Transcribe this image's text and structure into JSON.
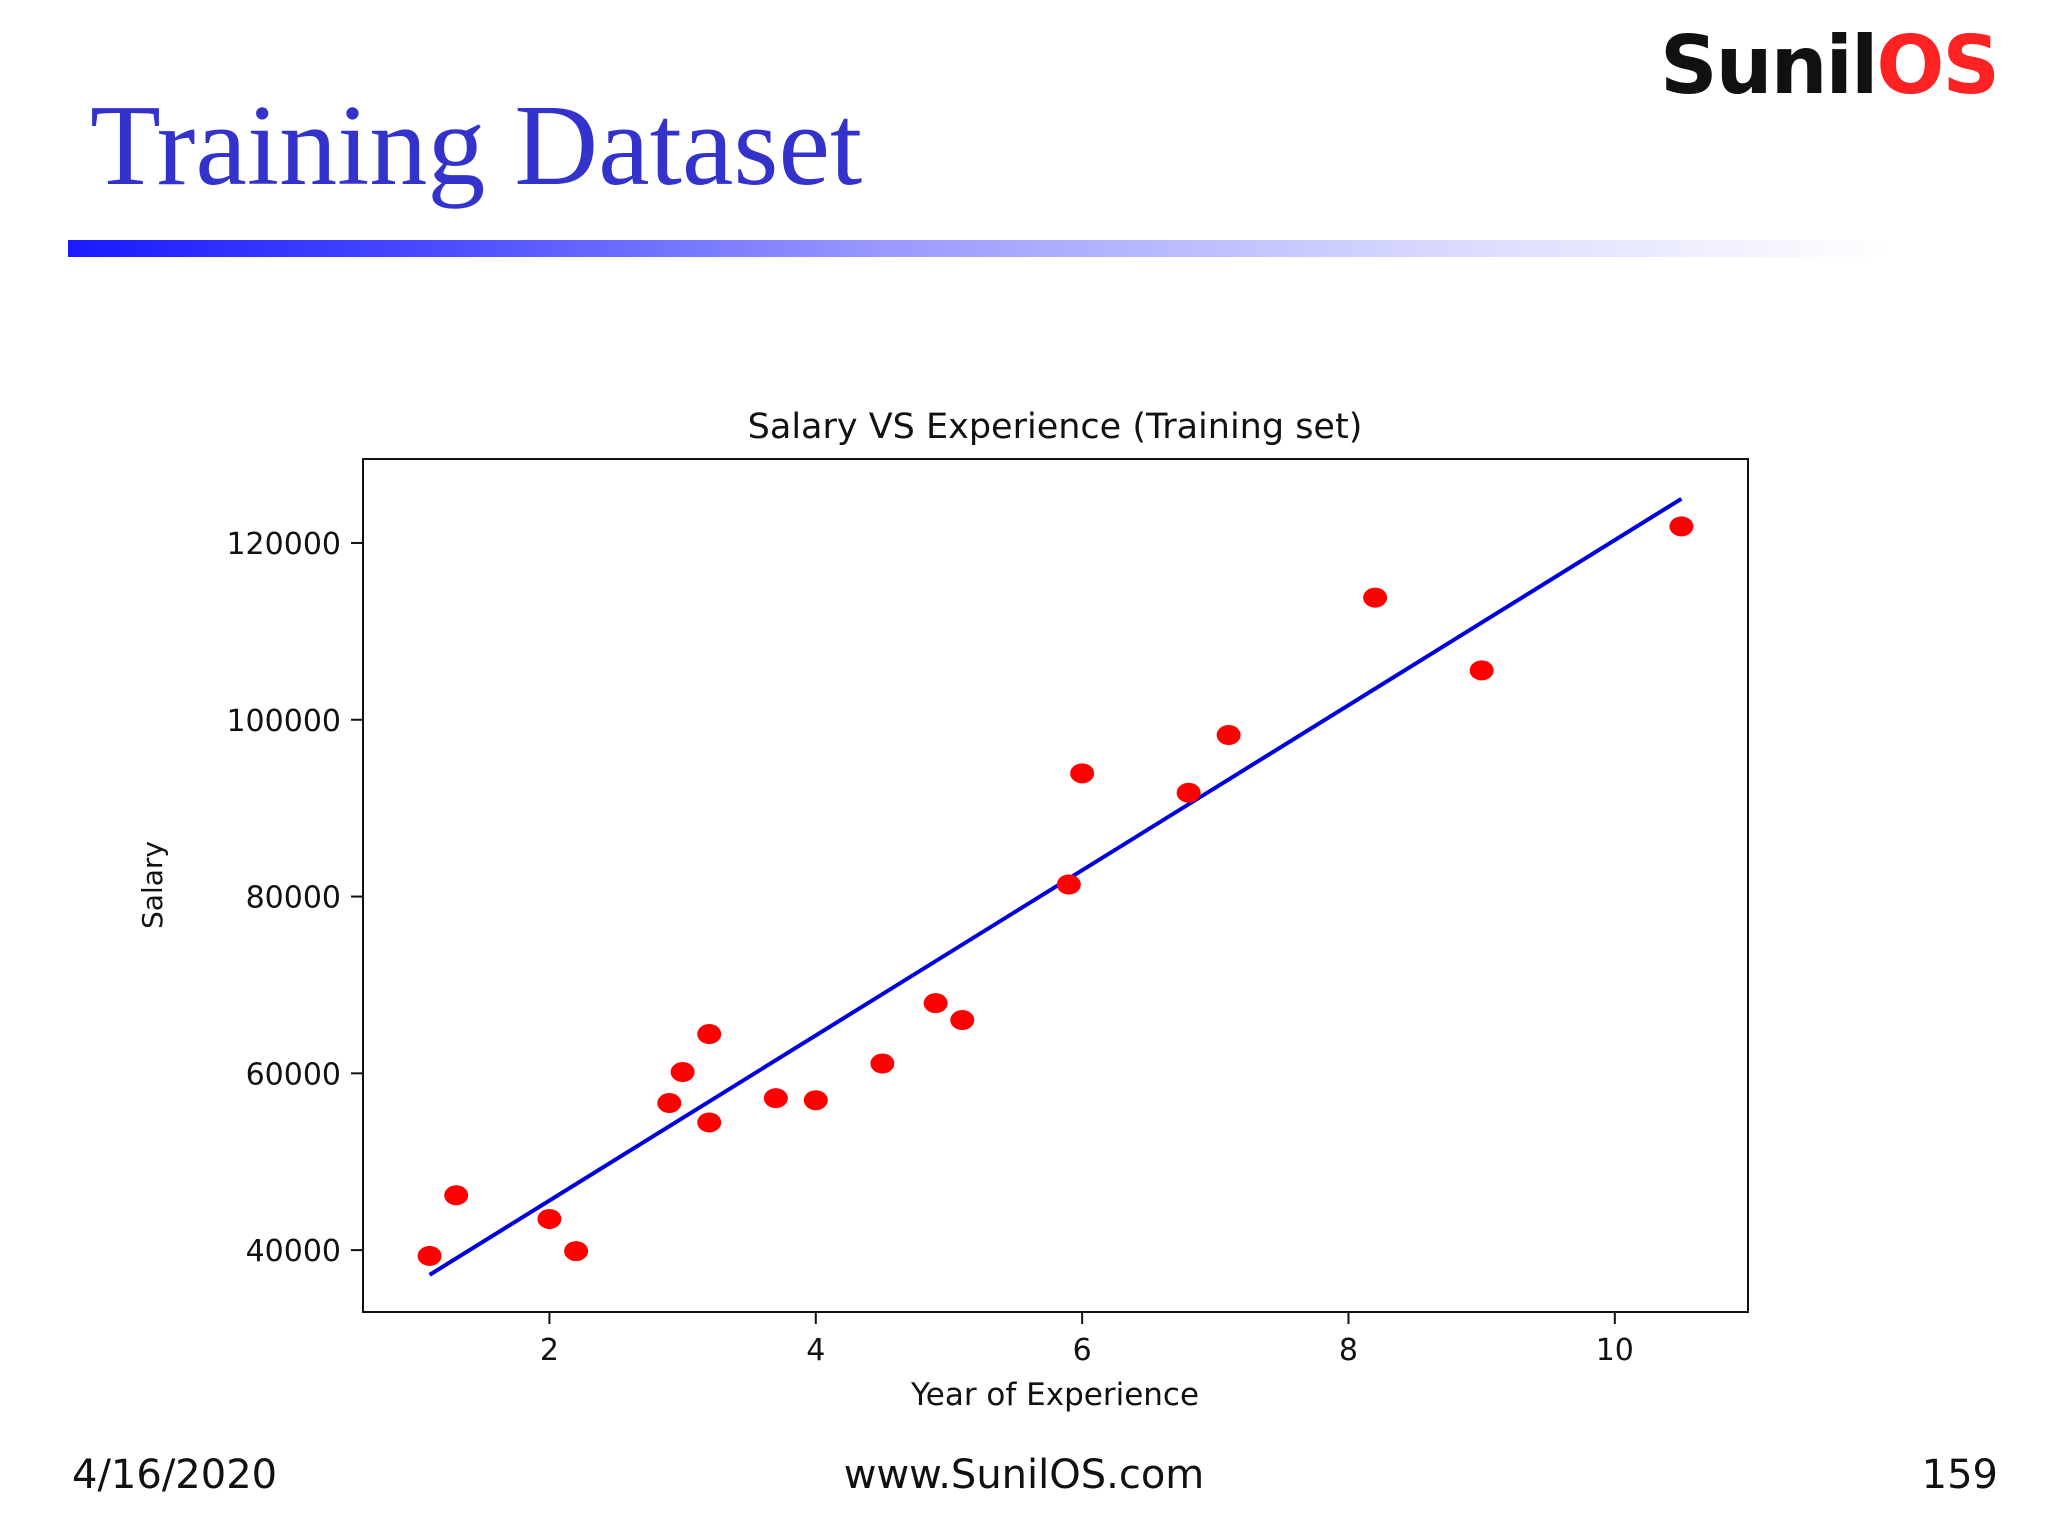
{
  "slide": {
    "title": "Training Dataset",
    "logo_part1": "Sunil",
    "logo_part2": "OS",
    "footer_date": "4/16/2020",
    "footer_site": "www.SunilOS.com",
    "page_number": "159"
  },
  "colors": {
    "title": "#3333cc",
    "points": "#ff0000",
    "line": "#0000dd",
    "logo_dark": "#111111",
    "logo_accent": "#ff2222"
  },
  "chart_data": {
    "type": "scatter",
    "title": "Salary VS Experience (Training set)",
    "xlabel": "Year of Experience",
    "ylabel": "Salary",
    "xlim": [
      0.6,
      11.0
    ],
    "ylim": [
      33000,
      129500
    ],
    "x_ticks": [
      2,
      4,
      6,
      8,
      10
    ],
    "x_tick_labels": [
      "2",
      "4",
      "6",
      "8",
      "10"
    ],
    "y_ticks": [
      40000,
      60000,
      80000,
      100000,
      120000
    ],
    "y_tick_labels": [
      "40000",
      "60000",
      "80000",
      "100000",
      "120000"
    ],
    "grid": false,
    "series": [
      {
        "name": "Training set",
        "kind": "scatter",
        "x": [
          1.1,
          1.3,
          2.0,
          2.2,
          2.9,
          3.0,
          3.2,
          3.2,
          3.7,
          4.0,
          4.5,
          4.9,
          5.1,
          5.9,
          6.0,
          6.8,
          7.1,
          8.2,
          9.0,
          10.5
        ],
        "y": [
          39343,
          46205,
          43525,
          39891,
          56642,
          60150,
          54445,
          64445,
          57189,
          56957,
          61111,
          67938,
          66029,
          81363,
          93940,
          91738,
          98273,
          113812,
          105582,
          121872
        ]
      },
      {
        "name": "Regression line",
        "kind": "line",
        "x": [
          1.1,
          10.5
        ],
        "y": [
          37200,
          125000
        ]
      }
    ]
  }
}
